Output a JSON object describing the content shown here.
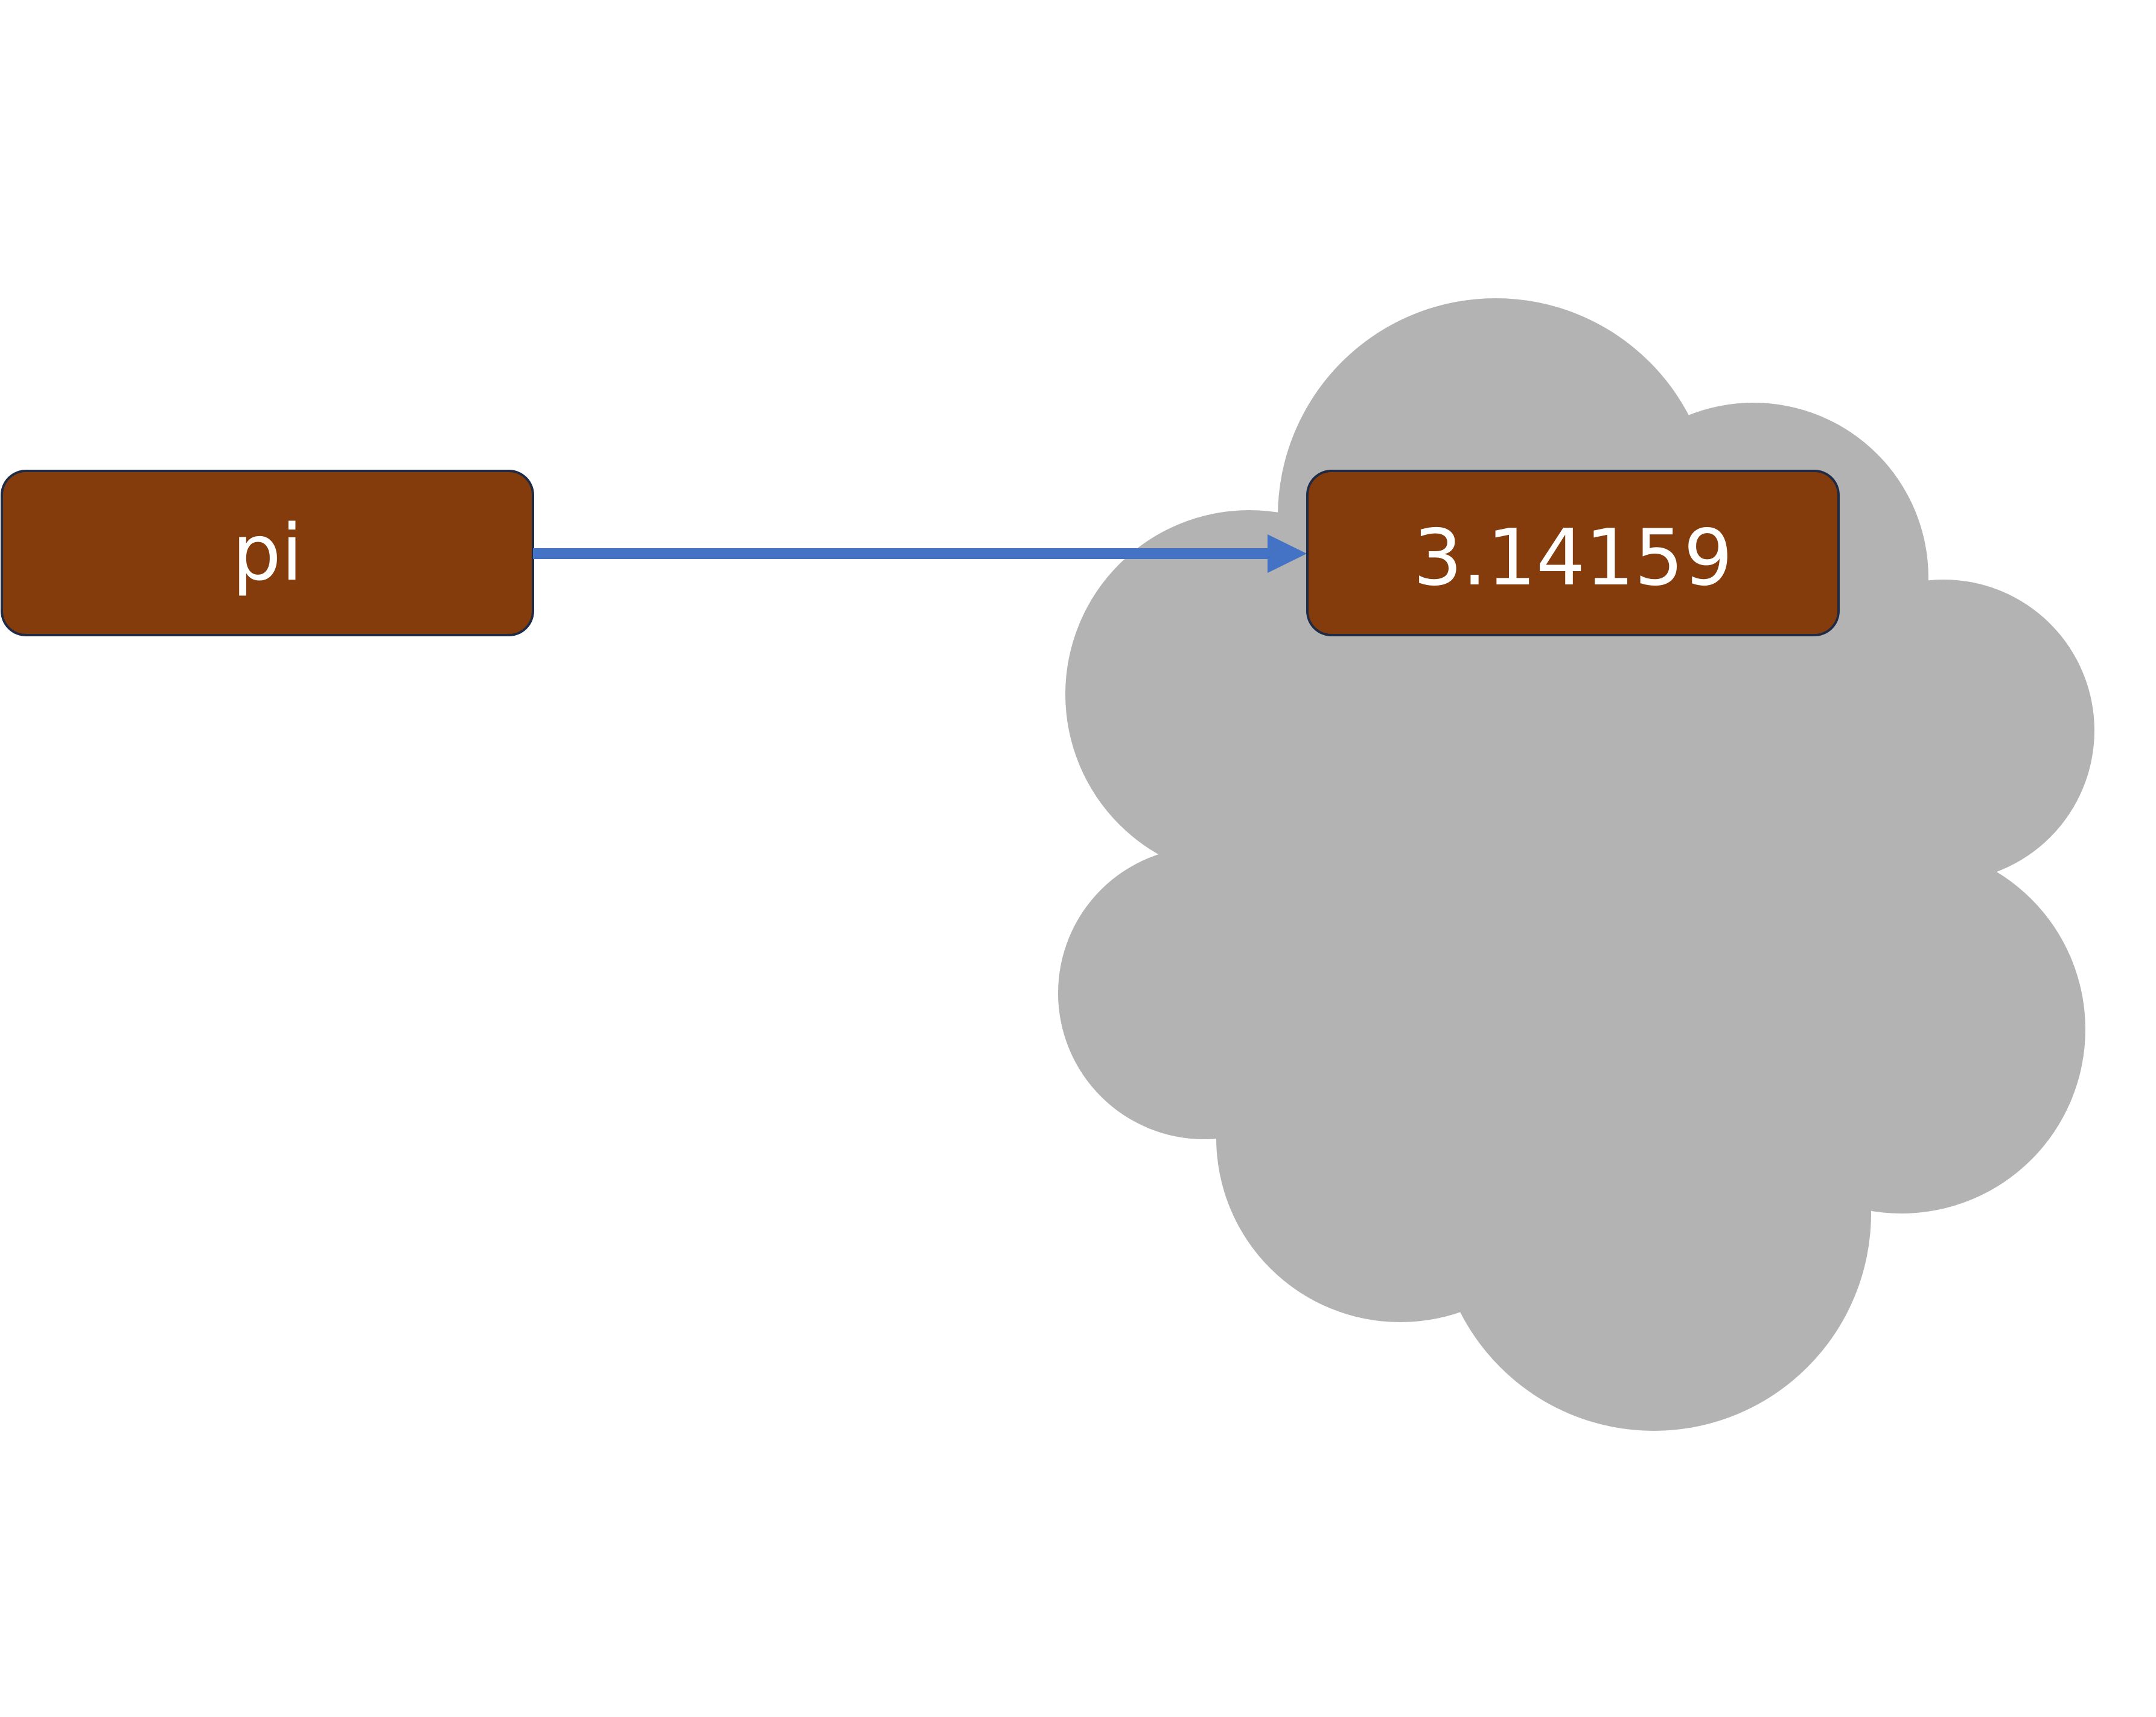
{
  "diagram": {
    "variable": {
      "label": "pi"
    },
    "value": {
      "label": "3.14159"
    },
    "colors": {
      "background": "#ffffff",
      "cloud": "#b3b3b3",
      "box_fill": "#843c0c",
      "box_stroke": "#1f2a44",
      "arrow": "#4472c4",
      "text": "#ffffff"
    }
  }
}
